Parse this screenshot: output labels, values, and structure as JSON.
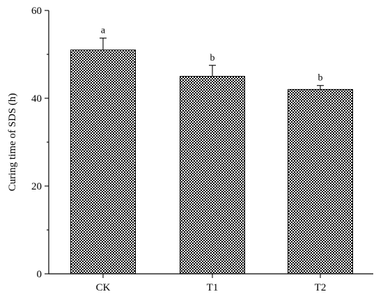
{
  "chart_data": {
    "type": "bar",
    "categories": [
      "CK",
      "T1",
      "T2"
    ],
    "values": [
      51,
      45,
      42
    ],
    "errors": [
      2.7,
      2.5,
      0.9
    ],
    "significance": [
      "a",
      "b",
      "b"
    ],
    "title": "",
    "xlabel": "",
    "ylabel": "Curing time of  SDS (h)",
    "ylim": [
      0,
      60
    ],
    "yticks": [
      0,
      20,
      40,
      60
    ],
    "grid": false,
    "bar_fill": "checkerboard",
    "colors": {
      "bar_dark": "#000000",
      "bar_light": "#ffffff",
      "axis": "#000000"
    }
  }
}
